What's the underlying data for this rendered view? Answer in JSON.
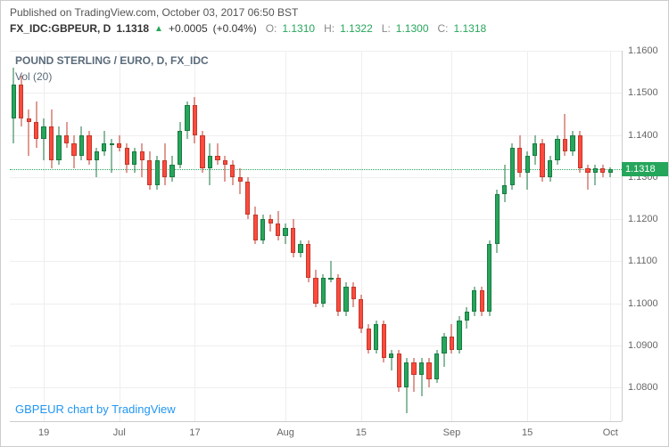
{
  "header": {
    "published": "Published on TradingView.com, October 03, 2017 06:50 BST"
  },
  "ticker": {
    "symbol": "FX_IDC:GBPEUR, D",
    "price": "1.1318",
    "change": "+0.0005",
    "change_pct": "(+0.04%)",
    "o_label": "O:",
    "o": "1.1310",
    "h_label": "H:",
    "h": "1.1322",
    "l_label": "L:",
    "l": "1.1300",
    "c_label": "C:",
    "c": "1.1318"
  },
  "chart": {
    "title": "POUND STERLING / EURO, D, FX_IDC",
    "vol_label": "Vol (20)",
    "attribution": "GBPEUR chart by TradingView",
    "ylim": [
      1.072,
      1.16
    ],
    "yticks": [
      1.08,
      1.09,
      1.1,
      1.11,
      1.12,
      1.13,
      1.14,
      1.15,
      1.16
    ],
    "xticks": [
      {
        "i": 4,
        "label": "19"
      },
      {
        "i": 14,
        "label": "Jul"
      },
      {
        "i": 24,
        "label": "17"
      },
      {
        "i": 36,
        "label": "Aug"
      },
      {
        "i": 46,
        "label": "15"
      },
      {
        "i": 58,
        "label": "Sep"
      },
      {
        "i": 68,
        "label": "15"
      },
      {
        "i": 79,
        "label": "Oct"
      }
    ],
    "last_price": 1.1318,
    "last_label": "1.1318",
    "colors": {
      "up": "#26a65b",
      "dn": "#ff4a3d",
      "grid": "#eeeeee"
    },
    "candles": [
      {
        "o": 1.144,
        "h": 1.156,
        "l": 1.138,
        "c": 1.152
      },
      {
        "o": 1.152,
        "h": 1.154,
        "l": 1.142,
        "c": 1.144
      },
      {
        "o": 1.144,
        "h": 1.146,
        "l": 1.135,
        "c": 1.143
      },
      {
        "o": 1.143,
        "h": 1.148,
        "l": 1.137,
        "c": 1.139
      },
      {
        "o": 1.139,
        "h": 1.144,
        "l": 1.134,
        "c": 1.142
      },
      {
        "o": 1.142,
        "h": 1.146,
        "l": 1.132,
        "c": 1.134
      },
      {
        "o": 1.134,
        "h": 1.142,
        "l": 1.133,
        "c": 1.14
      },
      {
        "o": 1.14,
        "h": 1.143,
        "l": 1.137,
        "c": 1.138
      },
      {
        "o": 1.138,
        "h": 1.14,
        "l": 1.132,
        "c": 1.135
      },
      {
        "o": 1.135,
        "h": 1.142,
        "l": 1.134,
        "c": 1.14
      },
      {
        "o": 1.14,
        "h": 1.141,
        "l": 1.133,
        "c": 1.134
      },
      {
        "o": 1.134,
        "h": 1.137,
        "l": 1.13,
        "c": 1.136
      },
      {
        "o": 1.136,
        "h": 1.141,
        "l": 1.135,
        "c": 1.138
      },
      {
        "o": 1.138,
        "h": 1.139,
        "l": 1.131,
        "c": 1.138
      },
      {
        "o": 1.138,
        "h": 1.14,
        "l": 1.136,
        "c": 1.137
      },
      {
        "o": 1.137,
        "h": 1.138,
        "l": 1.131,
        "c": 1.133
      },
      {
        "o": 1.133,
        "h": 1.137,
        "l": 1.131,
        "c": 1.136
      },
      {
        "o": 1.136,
        "h": 1.138,
        "l": 1.13,
        "c": 1.134
      },
      {
        "o": 1.134,
        "h": 1.136,
        "l": 1.127,
        "c": 1.128
      },
      {
        "o": 1.128,
        "h": 1.135,
        "l": 1.127,
        "c": 1.134
      },
      {
        "o": 1.134,
        "h": 1.138,
        "l": 1.128,
        "c": 1.13
      },
      {
        "o": 1.13,
        "h": 1.135,
        "l": 1.129,
        "c": 1.133
      },
      {
        "o": 1.133,
        "h": 1.143,
        "l": 1.132,
        "c": 1.141
      },
      {
        "o": 1.141,
        "h": 1.148,
        "l": 1.139,
        "c": 1.147
      },
      {
        "o": 1.147,
        "h": 1.149,
        "l": 1.138,
        "c": 1.14
      },
      {
        "o": 1.14,
        "h": 1.141,
        "l": 1.131,
        "c": 1.132
      },
      {
        "o": 1.132,
        "h": 1.138,
        "l": 1.128,
        "c": 1.135
      },
      {
        "o": 1.135,
        "h": 1.138,
        "l": 1.133,
        "c": 1.134
      },
      {
        "o": 1.134,
        "h": 1.135,
        "l": 1.129,
        "c": 1.133
      },
      {
        "o": 1.133,
        "h": 1.134,
        "l": 1.128,
        "c": 1.13
      },
      {
        "o": 1.13,
        "h": 1.132,
        "l": 1.126,
        "c": 1.129
      },
      {
        "o": 1.129,
        "h": 1.13,
        "l": 1.12,
        "c": 1.121
      },
      {
        "o": 1.121,
        "h": 1.123,
        "l": 1.114,
        "c": 1.115
      },
      {
        "o": 1.115,
        "h": 1.121,
        "l": 1.114,
        "c": 1.12
      },
      {
        "o": 1.12,
        "h": 1.121,
        "l": 1.117,
        "c": 1.119
      },
      {
        "o": 1.119,
        "h": 1.122,
        "l": 1.115,
        "c": 1.116
      },
      {
        "o": 1.116,
        "h": 1.119,
        "l": 1.114,
        "c": 1.118
      },
      {
        "o": 1.118,
        "h": 1.12,
        "l": 1.111,
        "c": 1.112
      },
      {
        "o": 1.112,
        "h": 1.115,
        "l": 1.111,
        "c": 1.114
      },
      {
        "o": 1.114,
        "h": 1.115,
        "l": 1.105,
        "c": 1.106
      },
      {
        "o": 1.106,
        "h": 1.108,
        "l": 1.099,
        "c": 1.1
      },
      {
        "o": 1.1,
        "h": 1.107,
        "l": 1.099,
        "c": 1.106
      },
      {
        "o": 1.106,
        "h": 1.11,
        "l": 1.105,
        "c": 1.106
      },
      {
        "o": 1.106,
        "h": 1.107,
        "l": 1.097,
        "c": 1.098
      },
      {
        "o": 1.098,
        "h": 1.105,
        "l": 1.097,
        "c": 1.104
      },
      {
        "o": 1.104,
        "h": 1.105,
        "l": 1.099,
        "c": 1.101
      },
      {
        "o": 1.101,
        "h": 1.102,
        "l": 1.093,
        "c": 1.094
      },
      {
        "o": 1.094,
        "h": 1.095,
        "l": 1.088,
        "c": 1.089
      },
      {
        "o": 1.089,
        "h": 1.096,
        "l": 1.088,
        "c": 1.095
      },
      {
        "o": 1.095,
        "h": 1.096,
        "l": 1.086,
        "c": 1.087
      },
      {
        "o": 1.087,
        "h": 1.089,
        "l": 1.084,
        "c": 1.088
      },
      {
        "o": 1.088,
        "h": 1.089,
        "l": 1.079,
        "c": 1.08
      },
      {
        "o": 1.08,
        "h": 1.087,
        "l": 1.074,
        "c": 1.086
      },
      {
        "o": 1.086,
        "h": 1.087,
        "l": 1.079,
        "c": 1.083
      },
      {
        "o": 1.083,
        "h": 1.087,
        "l": 1.078,
        "c": 1.086
      },
      {
        "o": 1.086,
        "h": 1.087,
        "l": 1.08,
        "c": 1.082
      },
      {
        "o": 1.082,
        "h": 1.089,
        "l": 1.081,
        "c": 1.088
      },
      {
        "o": 1.088,
        "h": 1.093,
        "l": 1.085,
        "c": 1.092
      },
      {
        "o": 1.092,
        "h": 1.095,
        "l": 1.088,
        "c": 1.089
      },
      {
        "o": 1.089,
        "h": 1.097,
        "l": 1.088,
        "c": 1.096
      },
      {
        "o": 1.096,
        "h": 1.099,
        "l": 1.094,
        "c": 1.098
      },
      {
        "o": 1.098,
        "h": 1.104,
        "l": 1.097,
        "c": 1.103
      },
      {
        "o": 1.103,
        "h": 1.104,
        "l": 1.097,
        "c": 1.098
      },
      {
        "o": 1.098,
        "h": 1.115,
        "l": 1.097,
        "c": 1.114
      },
      {
        "o": 1.114,
        "h": 1.127,
        "l": 1.112,
        "c": 1.126
      },
      {
        "o": 1.126,
        "h": 1.133,
        "l": 1.124,
        "c": 1.128
      },
      {
        "o": 1.128,
        "h": 1.138,
        "l": 1.127,
        "c": 1.137
      },
      {
        "o": 1.137,
        "h": 1.14,
        "l": 1.13,
        "c": 1.131
      },
      {
        "o": 1.131,
        "h": 1.136,
        "l": 1.127,
        "c": 1.135
      },
      {
        "o": 1.135,
        "h": 1.14,
        "l": 1.133,
        "c": 1.138
      },
      {
        "o": 1.138,
        "h": 1.139,
        "l": 1.129,
        "c": 1.13
      },
      {
        "o": 1.13,
        "h": 1.135,
        "l": 1.129,
        "c": 1.134
      },
      {
        "o": 1.134,
        "h": 1.14,
        "l": 1.133,
        "c": 1.139
      },
      {
        "o": 1.139,
        "h": 1.145,
        "l": 1.135,
        "c": 1.136
      },
      {
        "o": 1.136,
        "h": 1.141,
        "l": 1.135,
        "c": 1.14
      },
      {
        "o": 1.14,
        "h": 1.141,
        "l": 1.131,
        "c": 1.132
      },
      {
        "o": 1.132,
        "h": 1.133,
        "l": 1.127,
        "c": 1.131
      },
      {
        "o": 1.131,
        "h": 1.133,
        "l": 1.128,
        "c": 1.132
      },
      {
        "o": 1.132,
        "h": 1.133,
        "l": 1.13,
        "c": 1.131
      },
      {
        "o": 1.131,
        "h": 1.1322,
        "l": 1.13,
        "c": 1.1318
      }
    ]
  }
}
